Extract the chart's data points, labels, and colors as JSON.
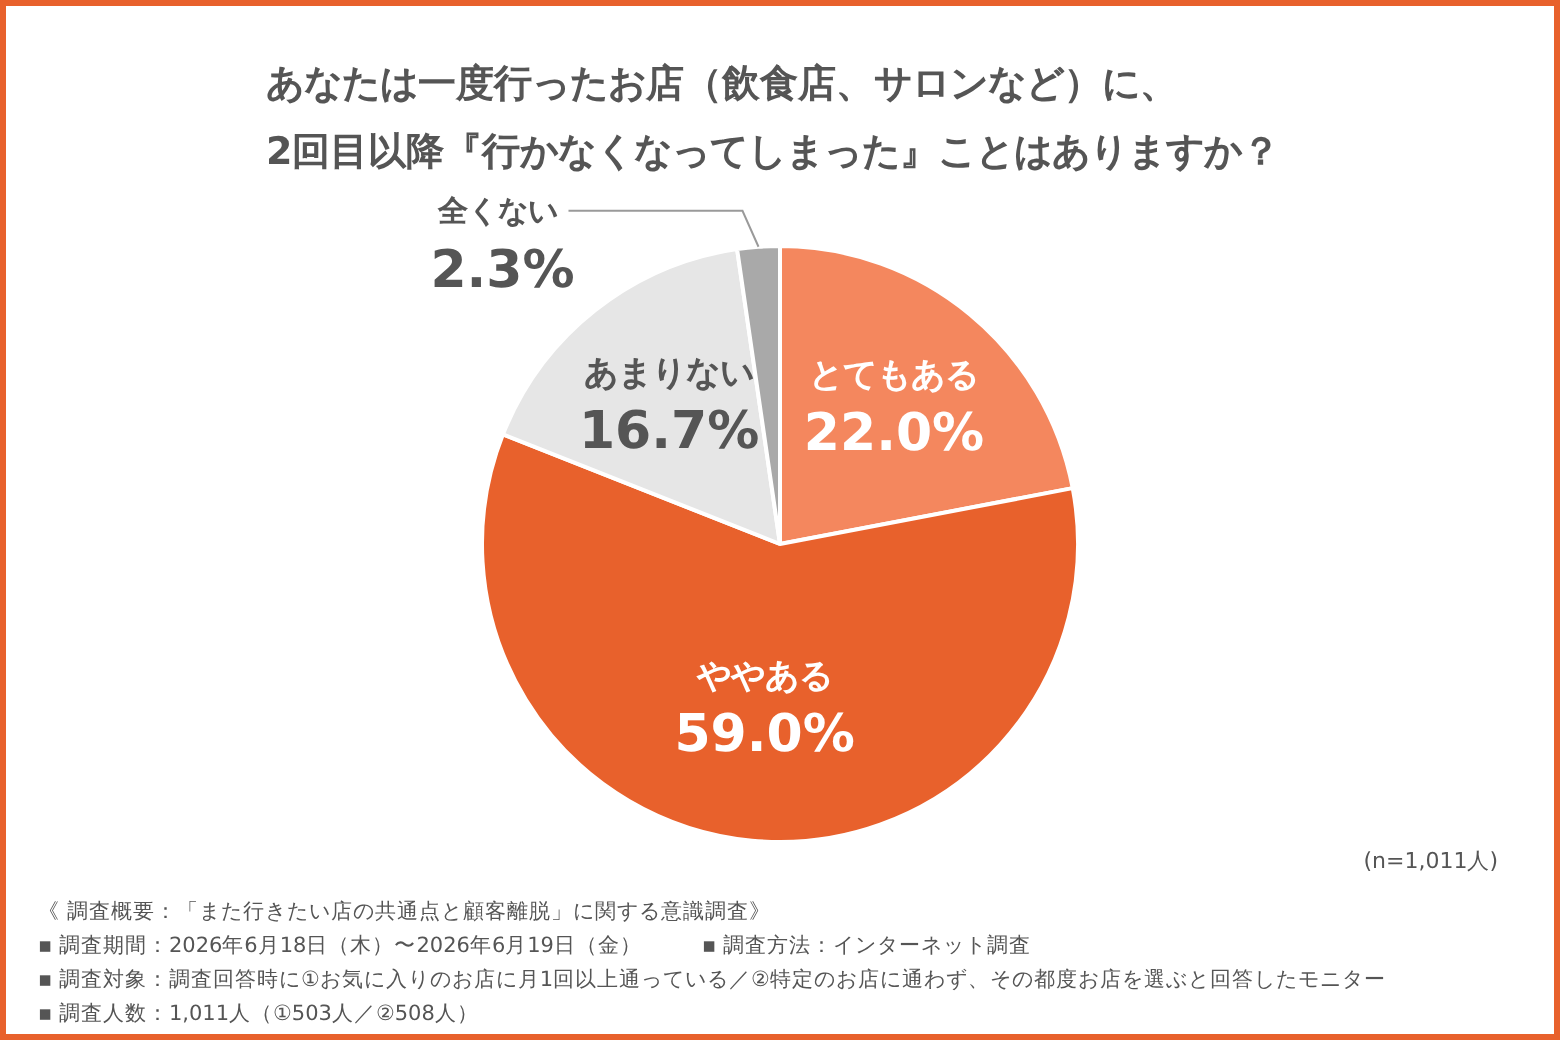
{
  "chart_data": {
    "type": "pie",
    "title": "あなたは一度行ったお店（飲食店、サロンなど）に、\n2回目以降『行かなくなってしまった』ことはありますか？",
    "categories": [
      "とてもある",
      "ややある",
      "あまりない",
      "全くない"
    ],
    "values": [
      22.0,
      59.0,
      16.7,
      2.3
    ],
    "colors": [
      "#f4875e",
      "#e8612c",
      "#e6e6e6",
      "#a9a9a9"
    ],
    "value_labels": [
      "22.0%",
      "59.0%",
      "16.7%",
      "2.3%"
    ],
    "legend": false,
    "annotations": [
      "(n=1,011人)",
      "《 調査概要：「また行きたい店の共通点と顧客離脱」に関する意識調査》",
      "▪ 調査期間：2026年6月18日（木）〜2026年6月19日（金）",
      "▪ 調査方法：インターネット調査",
      "▪ 調査対象：調査回答時に①お気に入りのお店に月1回以上通っている／②特定のお店に通わず、その都度お店を選ぶと回答したモニター",
      "▪ 調査人数：1,011人（①503人／②508人）"
    ]
  }
}
